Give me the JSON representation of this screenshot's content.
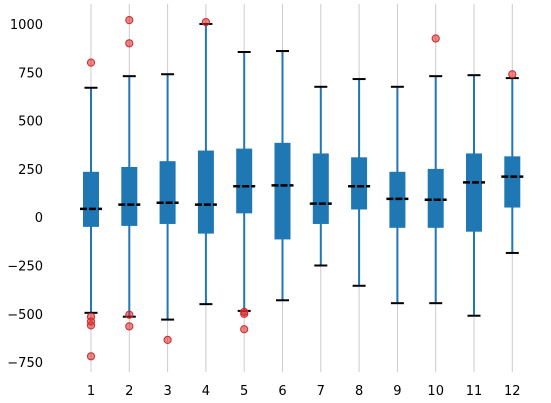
{
  "chart_data": {
    "type": "box",
    "categories": [
      "1",
      "2",
      "3",
      "4",
      "5",
      "6",
      "7",
      "8",
      "9",
      "10",
      "11",
      "12"
    ],
    "y_ticks": [
      1000,
      750,
      500,
      250,
      0,
      -250,
      -500,
      -750
    ],
    "y_tick_labels": [
      "1000",
      "750",
      "500",
      "250",
      "0",
      "−250",
      "−500",
      "−750"
    ],
    "ylim": [
      -800,
      1080
    ],
    "grid": "vertical",
    "colors": {
      "box": "#1f77b4",
      "median": "#000000",
      "cap": "#000000",
      "outlier": "#d62728",
      "grid": "#cccccc"
    },
    "boxes": [
      {
        "category": "1",
        "q1": -50,
        "q3": 235,
        "median": 43,
        "whisker_low": -495,
        "whisker_high": 670,
        "outliers": [
          800,
          -515,
          -540,
          -560,
          -720
        ]
      },
      {
        "category": "2",
        "q1": -45,
        "q3": 260,
        "median": 65,
        "whisker_low": -515,
        "whisker_high": 730,
        "outliers": [
          1020,
          900,
          -505,
          -565
        ]
      },
      {
        "category": "3",
        "q1": -35,
        "q3": 290,
        "median": 75,
        "whisker_low": -530,
        "whisker_high": 740,
        "outliers": [
          -635
        ]
      },
      {
        "category": "4",
        "q1": -85,
        "q3": 345,
        "median": 65,
        "whisker_low": -450,
        "whisker_high": 1000,
        "outliers": [
          1010
        ]
      },
      {
        "category": "5",
        "q1": 20,
        "q3": 355,
        "median": 160,
        "whisker_low": -485,
        "whisker_high": 855,
        "outliers": [
          -490,
          -500,
          -580
        ]
      },
      {
        "category": "6",
        "q1": -115,
        "q3": 385,
        "median": 165,
        "whisker_low": -430,
        "whisker_high": 860,
        "outliers": []
      },
      {
        "category": "7",
        "q1": -35,
        "q3": 330,
        "median": 70,
        "whisker_low": -250,
        "whisker_high": 675,
        "outliers": []
      },
      {
        "category": "8",
        "q1": 40,
        "q3": 310,
        "median": 160,
        "whisker_low": -355,
        "whisker_high": 715,
        "outliers": []
      },
      {
        "category": "9",
        "q1": -55,
        "q3": 235,
        "median": 95,
        "whisker_low": -445,
        "whisker_high": 675,
        "outliers": []
      },
      {
        "category": "10",
        "q1": -55,
        "q3": 250,
        "median": 90,
        "whisker_low": -445,
        "whisker_high": 730,
        "outliers": [
          925
        ]
      },
      {
        "category": "11",
        "q1": -75,
        "q3": 330,
        "median": 180,
        "whisker_low": -510,
        "whisker_high": 735,
        "outliers": []
      },
      {
        "category": "12",
        "q1": 50,
        "q3": 315,
        "median": 210,
        "whisker_low": -185,
        "whisker_high": 720,
        "outliers": [
          740
        ]
      }
    ]
  }
}
